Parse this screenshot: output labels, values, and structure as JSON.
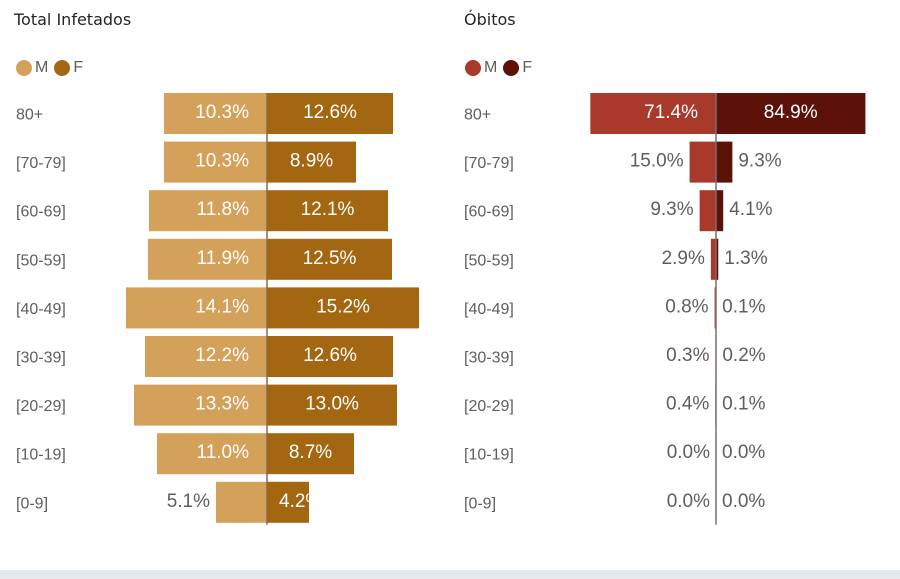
{
  "chart_data": [
    {
      "type": "bar",
      "title": "Total Infetados",
      "categories": [
        "80+",
        "[70-79]",
        "[60-69]",
        "[50-59]",
        "[40-49]",
        "[30-39]",
        "[20-29]",
        "[10-19]",
        "[0-9]"
      ],
      "series": [
        {
          "name": "M",
          "color": "#d4a15a",
          "values": [
            10.3,
            10.3,
            11.8,
            11.9,
            14.1,
            12.2,
            13.3,
            11.0,
            5.1
          ]
        },
        {
          "name": "F",
          "color": "#a36611",
          "values": [
            12.6,
            8.9,
            12.1,
            12.5,
            15.2,
            12.6,
            13.0,
            8.7,
            4.2
          ]
        }
      ],
      "labels": {
        "M": [
          "10.3%",
          "10.3%",
          "11.8%",
          "11.9%",
          "14.1%",
          "12.2%",
          "13.3%",
          "11.0%",
          "5.1%"
        ],
        "F": [
          "12.6%",
          "8.9%",
          "12.1%",
          "12.5%",
          "15.2%",
          "12.6%",
          "13.0%",
          "8.7%",
          "4.2%"
        ]
      },
      "legend": "top-left",
      "grid": false
    },
    {
      "type": "bar",
      "title": "Óbitos",
      "categories": [
        "80+",
        "[70-79]",
        "[60-69]",
        "[50-59]",
        "[40-49]",
        "[30-39]",
        "[20-29]",
        "[10-19]",
        "[0-9]"
      ],
      "series": [
        {
          "name": "M",
          "color": "#a8392b",
          "values": [
            71.4,
            15.0,
            9.3,
            2.9,
            0.8,
            0.3,
            0.4,
            0.0,
            0.0
          ]
        },
        {
          "name": "F",
          "color": "#5c1208",
          "values": [
            84.9,
            9.3,
            4.1,
            1.3,
            0.1,
            0.2,
            0.1,
            0.0,
            0.0
          ]
        }
      ],
      "labels": {
        "M": [
          "71.4%",
          "15.0%",
          "9.3%",
          "2.9%",
          "0.8%",
          "0.3%",
          "0.4%",
          "0.0%",
          "0.0%"
        ],
        "F": [
          "84.9%",
          "9.3%",
          "4.1%",
          "1.3%",
          "0.1%",
          "0.2%",
          "0.1%",
          "0.0%",
          "0.0%"
        ]
      },
      "legend": "top-left",
      "grid": false
    }
  ]
}
